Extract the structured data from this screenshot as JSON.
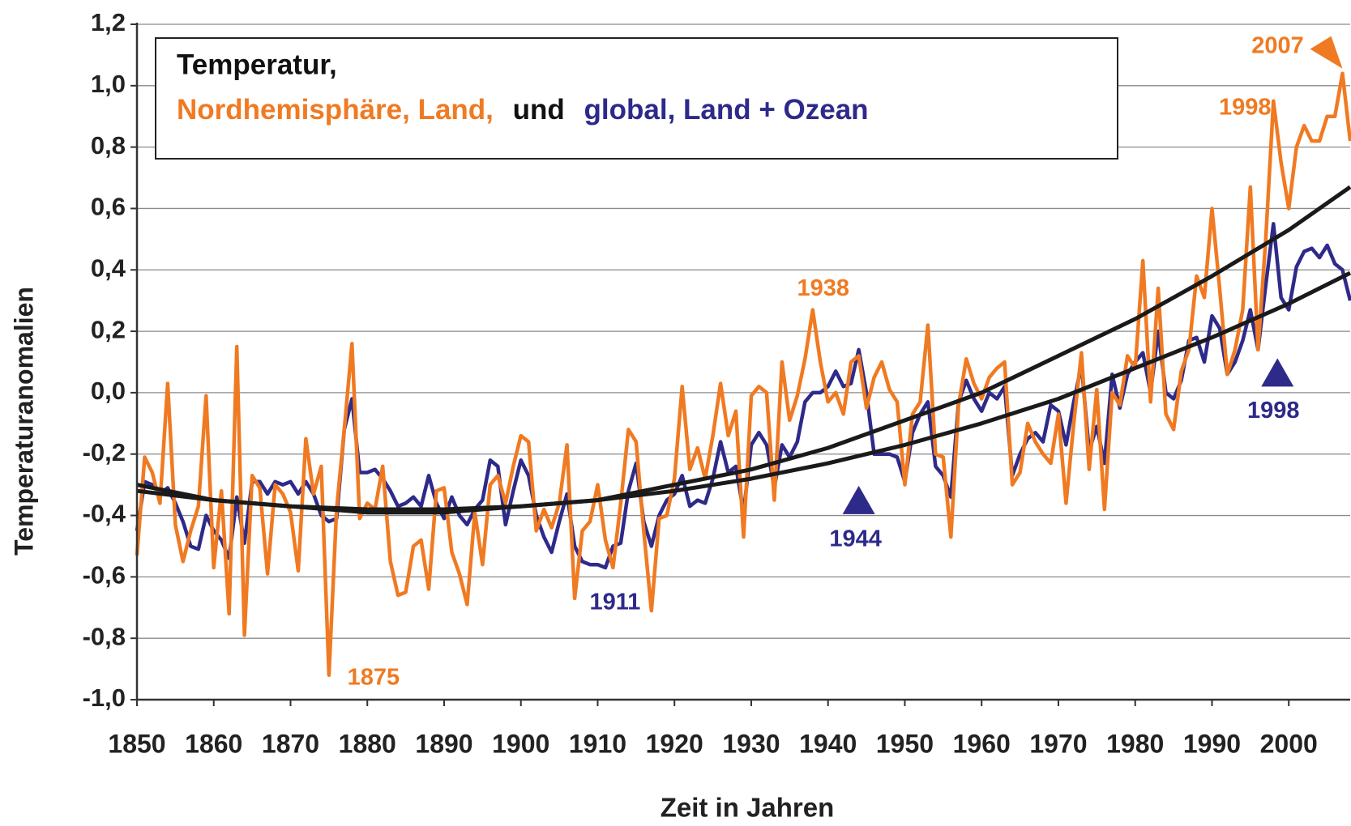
{
  "chart_data": {
    "type": "line",
    "title": "Temperatur,",
    "title_connector": "und",
    "x_label": "Zeit in Jahren",
    "y_label": "Temperaturanomalien",
    "xlim": [
      1850,
      2008
    ],
    "ylim": [
      -1.0,
      1.2
    ],
    "xticks": [
      1850,
      1860,
      1870,
      1880,
      1890,
      1900,
      1910,
      1920,
      1930,
      1940,
      1950,
      1960,
      1970,
      1980,
      1990,
      2000
    ],
    "yticks": [
      {
        "value": -1.0,
        "label": "-1,0"
      },
      {
        "value": -0.8,
        "label": "-0,8"
      },
      {
        "value": -0.6,
        "label": "-0,6"
      },
      {
        "value": -0.4,
        "label": "-0,4"
      },
      {
        "value": -0.2,
        "label": "-0,2"
      },
      {
        "value": 0.0,
        "label": "0,0"
      },
      {
        "value": 0.2,
        "label": "0,2"
      },
      {
        "value": 0.4,
        "label": "0,4"
      },
      {
        "value": 0.6,
        "label": "0,6"
      },
      {
        "value": 0.8,
        "label": "0,8"
      },
      {
        "value": 1.0,
        "label": "1,0"
      },
      {
        "value": 1.2,
        "label": "1,2"
      }
    ],
    "grid": true,
    "x": [
      1850,
      1851,
      1852,
      1853,
      1854,
      1855,
      1856,
      1857,
      1858,
      1859,
      1860,
      1861,
      1862,
      1863,
      1864,
      1865,
      1866,
      1867,
      1868,
      1869,
      1870,
      1871,
      1872,
      1873,
      1874,
      1875,
      1876,
      1877,
      1878,
      1879,
      1880,
      1881,
      1882,
      1883,
      1884,
      1885,
      1886,
      1887,
      1888,
      1889,
      1890,
      1891,
      1892,
      1893,
      1894,
      1895,
      1896,
      1897,
      1898,
      1899,
      1900,
      1901,
      1902,
      1903,
      1904,
      1905,
      1906,
      1907,
      1908,
      1909,
      1910,
      1911,
      1912,
      1913,
      1914,
      1915,
      1916,
      1917,
      1918,
      1919,
      1920,
      1921,
      1922,
      1923,
      1924,
      1925,
      1926,
      1927,
      1928,
      1929,
      1930,
      1931,
      1932,
      1933,
      1934,
      1935,
      1936,
      1937,
      1938,
      1939,
      1940,
      1941,
      1942,
      1943,
      1944,
      1945,
      1946,
      1947,
      1948,
      1949,
      1950,
      1951,
      1952,
      1953,
      1954,
      1955,
      1956,
      1957,
      1958,
      1959,
      1960,
      1961,
      1962,
      1963,
      1964,
      1965,
      1966,
      1967,
      1968,
      1969,
      1970,
      1971,
      1972,
      1973,
      1974,
      1975,
      1976,
      1977,
      1978,
      1979,
      1980,
      1981,
      1982,
      1983,
      1984,
      1985,
      1986,
      1987,
      1988,
      1989,
      1990,
      1991,
      1992,
      1993,
      1994,
      1995,
      1996,
      1997,
      1998,
      1999,
      2000,
      2001,
      2002,
      2003,
      2004,
      2005,
      2006,
      2007,
      2008
    ],
    "series": [
      {
        "name": "Nordhemisphäre, Land,",
        "color": "#f07a22",
        "values": [
          -0.53,
          -0.21,
          -0.26,
          -0.36,
          0.03,
          -0.43,
          -0.55,
          -0.45,
          -0.37,
          -0.01,
          -0.57,
          -0.32,
          -0.72,
          0.15,
          -0.79,
          -0.27,
          -0.31,
          -0.59,
          -0.3,
          -0.33,
          -0.39,
          -0.58,
          -0.15,
          -0.33,
          -0.24,
          -0.92,
          -0.38,
          -0.12,
          0.16,
          -0.41,
          -0.36,
          -0.38,
          -0.24,
          -0.55,
          -0.66,
          -0.65,
          -0.5,
          -0.48,
          -0.64,
          -0.32,
          -0.31,
          -0.52,
          -0.59,
          -0.69,
          -0.39,
          -0.56,
          -0.3,
          -0.27,
          -0.36,
          -0.24,
          -0.14,
          -0.16,
          -0.45,
          -0.38,
          -0.44,
          -0.36,
          -0.17,
          -0.67,
          -0.45,
          -0.42,
          -0.3,
          -0.48,
          -0.57,
          -0.36,
          -0.12,
          -0.16,
          -0.45,
          -0.71,
          -0.41,
          -0.4,
          -0.28,
          0.02,
          -0.25,
          -0.18,
          -0.28,
          -0.14,
          0.03,
          -0.14,
          -0.06,
          -0.47,
          -0.01,
          0.02,
          0.0,
          -0.35,
          0.1,
          -0.09,
          -0.01,
          0.11,
          0.27,
          0.1,
          -0.03,
          0.0,
          -0.07,
          0.1,
          0.12,
          -0.05,
          0.05,
          0.1,
          0.01,
          -0.03,
          -0.3,
          -0.07,
          -0.03,
          0.22,
          -0.2,
          -0.21,
          -0.47,
          -0.04,
          0.11,
          0.03,
          -0.02,
          0.05,
          0.08,
          0.1,
          -0.3,
          -0.26,
          -0.1,
          -0.16,
          -0.2,
          -0.23,
          -0.07,
          -0.36,
          -0.1,
          0.13,
          -0.25,
          0.01,
          -0.38,
          0.0,
          -0.04,
          0.12,
          0.08,
          0.43,
          -0.03,
          0.34,
          -0.07,
          -0.12,
          0.07,
          0.14,
          0.38,
          0.31,
          0.6,
          0.34,
          0.06,
          0.14,
          0.27,
          0.67,
          0.14,
          0.5,
          0.95,
          0.75,
          0.6,
          0.8,
          0.87,
          0.82,
          0.82,
          0.9,
          0.9,
          1.04,
          0.82
        ]
      },
      {
        "name": "global, Land + Ozean",
        "color": "#2e2a8a",
        "values": [
          -0.45,
          -0.29,
          -0.3,
          -0.33,
          -0.31,
          -0.36,
          -0.42,
          -0.5,
          -0.51,
          -0.4,
          -0.45,
          -0.48,
          -0.54,
          -0.34,
          -0.49,
          -0.29,
          -0.29,
          -0.33,
          -0.29,
          -0.3,
          -0.29,
          -0.33,
          -0.29,
          -0.33,
          -0.4,
          -0.42,
          -0.41,
          -0.12,
          -0.02,
          -0.26,
          -0.26,
          -0.25,
          -0.28,
          -0.32,
          -0.37,
          -0.36,
          -0.34,
          -0.37,
          -0.27,
          -0.36,
          -0.41,
          -0.34,
          -0.4,
          -0.43,
          -0.38,
          -0.35,
          -0.22,
          -0.24,
          -0.43,
          -0.32,
          -0.22,
          -0.27,
          -0.4,
          -0.47,
          -0.52,
          -0.42,
          -0.33,
          -0.5,
          -0.55,
          -0.56,
          -0.56,
          -0.57,
          -0.5,
          -0.49,
          -0.32,
          -0.23,
          -0.42,
          -0.5,
          -0.4,
          -0.35,
          -0.33,
          -0.27,
          -0.37,
          -0.35,
          -0.36,
          -0.28,
          -0.16,
          -0.26,
          -0.24,
          -0.39,
          -0.17,
          -0.13,
          -0.17,
          -0.31,
          -0.17,
          -0.21,
          -0.16,
          -0.03,
          0.0,
          0.0,
          0.02,
          0.07,
          0.02,
          0.03,
          0.14,
          0.0,
          -0.2,
          -0.2,
          -0.2,
          -0.21,
          -0.29,
          -0.13,
          -0.07,
          -0.03,
          -0.24,
          -0.27,
          -0.34,
          -0.03,
          0.04,
          -0.02,
          -0.06,
          0.0,
          -0.02,
          0.02,
          -0.27,
          -0.2,
          -0.15,
          -0.13,
          -0.16,
          -0.04,
          -0.06,
          -0.17,
          -0.03,
          0.09,
          -0.19,
          -0.11,
          -0.23,
          0.06,
          -0.05,
          0.06,
          0.1,
          0.13,
          0.0,
          0.2,
          0.0,
          -0.02,
          0.04,
          0.17,
          0.18,
          0.1,
          0.25,
          0.21,
          0.06,
          0.1,
          0.17,
          0.27,
          0.14,
          0.35,
          0.55,
          0.31,
          0.27,
          0.41,
          0.46,
          0.47,
          0.44,
          0.48,
          0.42,
          0.4,
          0.3
        ]
      }
    ],
    "trends": [
      {
        "color": "#1a1a1a",
        "x": [
          1850,
          1860,
          1870,
          1880,
          1890,
          1900,
          1910,
          1920,
          1930,
          1940,
          1950,
          1960,
          1970,
          1980,
          1990,
          2000,
          2008
        ],
        "values": [
          -0.3,
          -0.35,
          -0.37,
          -0.39,
          -0.39,
          -0.37,
          -0.35,
          -0.3,
          -0.25,
          -0.18,
          -0.09,
          0.0,
          0.12,
          0.24,
          0.38,
          0.53,
          0.67
        ]
      },
      {
        "color": "#1a1a1a",
        "x": [
          1850,
          1860,
          1870,
          1880,
          1890,
          1900,
          1910,
          1920,
          1930,
          1940,
          1950,
          1960,
          1970,
          1980,
          1990,
          2000,
          2008
        ],
        "values": [
          -0.32,
          -0.35,
          -0.37,
          -0.38,
          -0.38,
          -0.37,
          -0.35,
          -0.32,
          -0.28,
          -0.23,
          -0.17,
          -0.1,
          -0.02,
          0.08,
          0.18,
          0.29,
          0.39
        ]
      }
    ],
    "annotations": [
      {
        "x": 1875,
        "series": 0
      },
      {
        "x": 1911,
        "series": 1
      },
      {
        "x": 1938,
        "series": 0
      },
      {
        "x": 1944,
        "series": 1,
        "marker": "triangle"
      },
      {
        "x": 1998,
        "series": 0
      },
      {
        "x": 1998,
        "series": 1,
        "marker": "triangle"
      },
      {
        "x": 2007,
        "series": 0,
        "marker": "triangle"
      }
    ]
  }
}
